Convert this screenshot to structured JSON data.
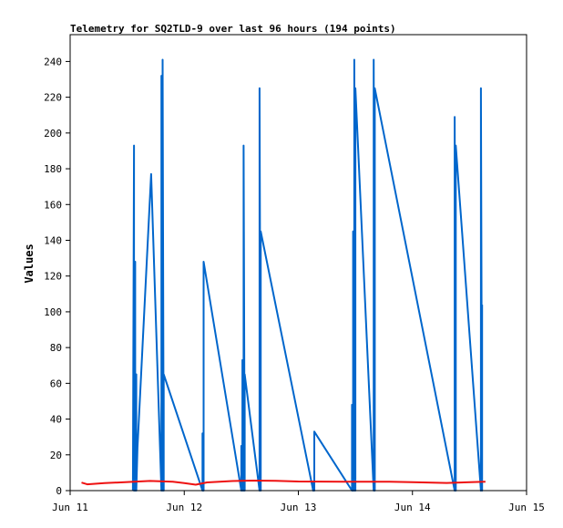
{
  "chart_data": {
    "type": "line",
    "title": "Telemetry for SQ2TLD-9 over last 96 hours (194 points)",
    "xlabel": "",
    "ylabel": "Values",
    "xlim": [
      "Jun 11",
      "Jun 15"
    ],
    "ylim": [
      0,
      255
    ],
    "x_ticks": [
      "Jun 11",
      "Jun 12",
      "Jun 13",
      "Jun 14",
      "Jun 15"
    ],
    "y_ticks": [
      0,
      20,
      40,
      60,
      80,
      100,
      120,
      140,
      160,
      180,
      200,
      220,
      240
    ],
    "grid": false,
    "legend": "none",
    "series": [
      {
        "color": "#0066cc",
        "x": [
          11.55,
          11.56,
          11.56,
          11.57,
          11.57,
          11.58,
          11.58,
          11.59,
          11.71,
          11.8,
          11.8,
          11.81,
          11.81,
          11.82,
          11.82,
          12.16,
          12.16,
          12.17,
          12.17,
          12.5,
          12.5,
          12.51,
          12.51,
          12.52,
          12.52,
          12.53,
          12.53,
          12.66,
          12.66,
          12.67,
          12.67,
          13.13,
          13.13,
          13.14,
          13.14,
          13.47,
          13.47,
          13.48,
          13.48,
          13.49,
          13.49,
          13.5,
          13.5,
          13.66,
          13.66,
          13.67,
          13.67,
          14.37,
          14.37,
          14.38,
          14.38,
          14.6,
          14.6,
          14.61,
          14.61
        ],
        "values": [
          0,
          193,
          0,
          128,
          0,
          65,
          0,
          24,
          177,
          0,
          232,
          0,
          241,
          0,
          65,
          0,
          32,
          0,
          128,
          0,
          25,
          0,
          73,
          0,
          193,
          0,
          65,
          0,
          225,
          0,
          145,
          0,
          5,
          0,
          33,
          0,
          48,
          0,
          145,
          0,
          241,
          0,
          225,
          0,
          241,
          0,
          225,
          0,
          209,
          0,
          193,
          0,
          225,
          0,
          104
        ]
      },
      {
        "color": "#ee1111",
        "x": [
          11.1,
          11.15,
          11.3,
          11.5,
          11.7,
          11.9,
          12.0,
          12.1,
          12.2,
          12.4,
          12.6,
          12.8,
          13.0,
          13.4,
          13.8,
          14.0,
          14.3,
          14.6,
          14.64
        ],
        "values": [
          4.5,
          3.5,
          4.2,
          4.8,
          5.4,
          5.0,
          4.2,
          3.3,
          4.6,
          5.3,
          5.6,
          5.5,
          5.1,
          5.0,
          5.0,
          4.7,
          4.3,
          4.9,
          5.0
        ]
      },
      {
        "color": "#000000",
        "x": [
          11.1,
          14.64
        ],
        "values": [
          0,
          0
        ]
      }
    ]
  }
}
